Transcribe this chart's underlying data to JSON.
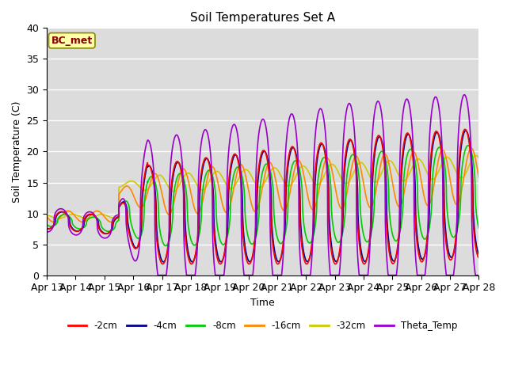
{
  "title": "Soil Temperatures Set A",
  "xlabel": "Time",
  "ylabel": "Soil Temperature (C)",
  "ylim": [
    0,
    40
  ],
  "n_days": 15,
  "tick_labels": [
    "Apr 13",
    "Apr 14",
    "Apr 15",
    "Apr 16",
    "Apr 17",
    "Apr 18",
    "Apr 19",
    "Apr 20",
    "Apr 21",
    "Apr 22",
    "Apr 23",
    "Apr 24",
    "Apr 25",
    "Apr 26",
    "Apr 27",
    "Apr 28"
  ],
  "annotation_text": "BC_met",
  "plot_bg_color": "#dcdcdc",
  "series": {
    "-2cm": {
      "color": "#ff0000",
      "lw": 1.2
    },
    "-4cm": {
      "color": "#00008b",
      "lw": 1.2
    },
    "-8cm": {
      "color": "#00cc00",
      "lw": 1.2
    },
    "-16cm": {
      "color": "#ff8800",
      "lw": 1.2
    },
    "-32cm": {
      "color": "#cccc00",
      "lw": 1.2
    },
    "Theta_Temp": {
      "color": "#9900cc",
      "lw": 1.2
    }
  }
}
